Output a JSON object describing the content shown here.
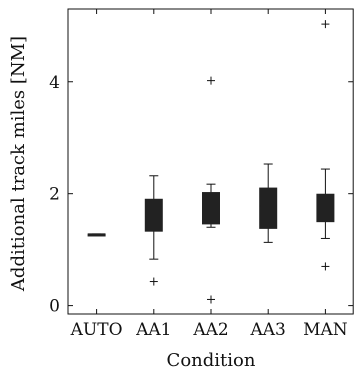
{
  "chart_data": {
    "type": "box",
    "title": "",
    "xlabel": "Condition",
    "ylabel": "Additional track miles [NM]",
    "categories": [
      "AUTO",
      "AA1",
      "AA2",
      "AA3",
      "MAN"
    ],
    "ylim": [
      -0.15,
      5.3
    ],
    "yticks": [
      0,
      2,
      4
    ],
    "ytick_labels": [
      "0",
      "2",
      "4"
    ],
    "grid": false,
    "legend": "none",
    "colors": {
      "axis": "#111111",
      "box": "#222222",
      "whisker": "#111111",
      "outlier": "#111111",
      "background": "#ffffff"
    },
    "series": [
      {
        "values": [
          {
            "category": "AUTO",
            "whislo": 1.28,
            "q1": 1.28,
            "median": 1.28,
            "q3": 1.28,
            "whishi": 1.28,
            "fliers": []
          },
          {
            "category": "AA1",
            "whislo": 0.83,
            "q1": 1.33,
            "median": 1.6,
            "q3": 1.9,
            "whishi": 2.32,
            "fliers": [
              0.43
            ]
          },
          {
            "category": "AA2",
            "whislo": 1.4,
            "q1": 1.46,
            "median": 1.82,
            "q3": 2.02,
            "whishi": 2.17,
            "fliers": [
              0.11,
              4.02
            ]
          },
          {
            "category": "AA3",
            "whislo": 1.13,
            "q1": 1.38,
            "median": 1.78,
            "q3": 2.1,
            "whishi": 2.53,
            "fliers": []
          },
          {
            "category": "MAN",
            "whislo": 1.2,
            "q1": 1.5,
            "median": 1.75,
            "q3": 1.99,
            "whishi": 2.44,
            "fliers": [
              0.7,
              5.03
            ]
          }
        ]
      }
    ]
  }
}
